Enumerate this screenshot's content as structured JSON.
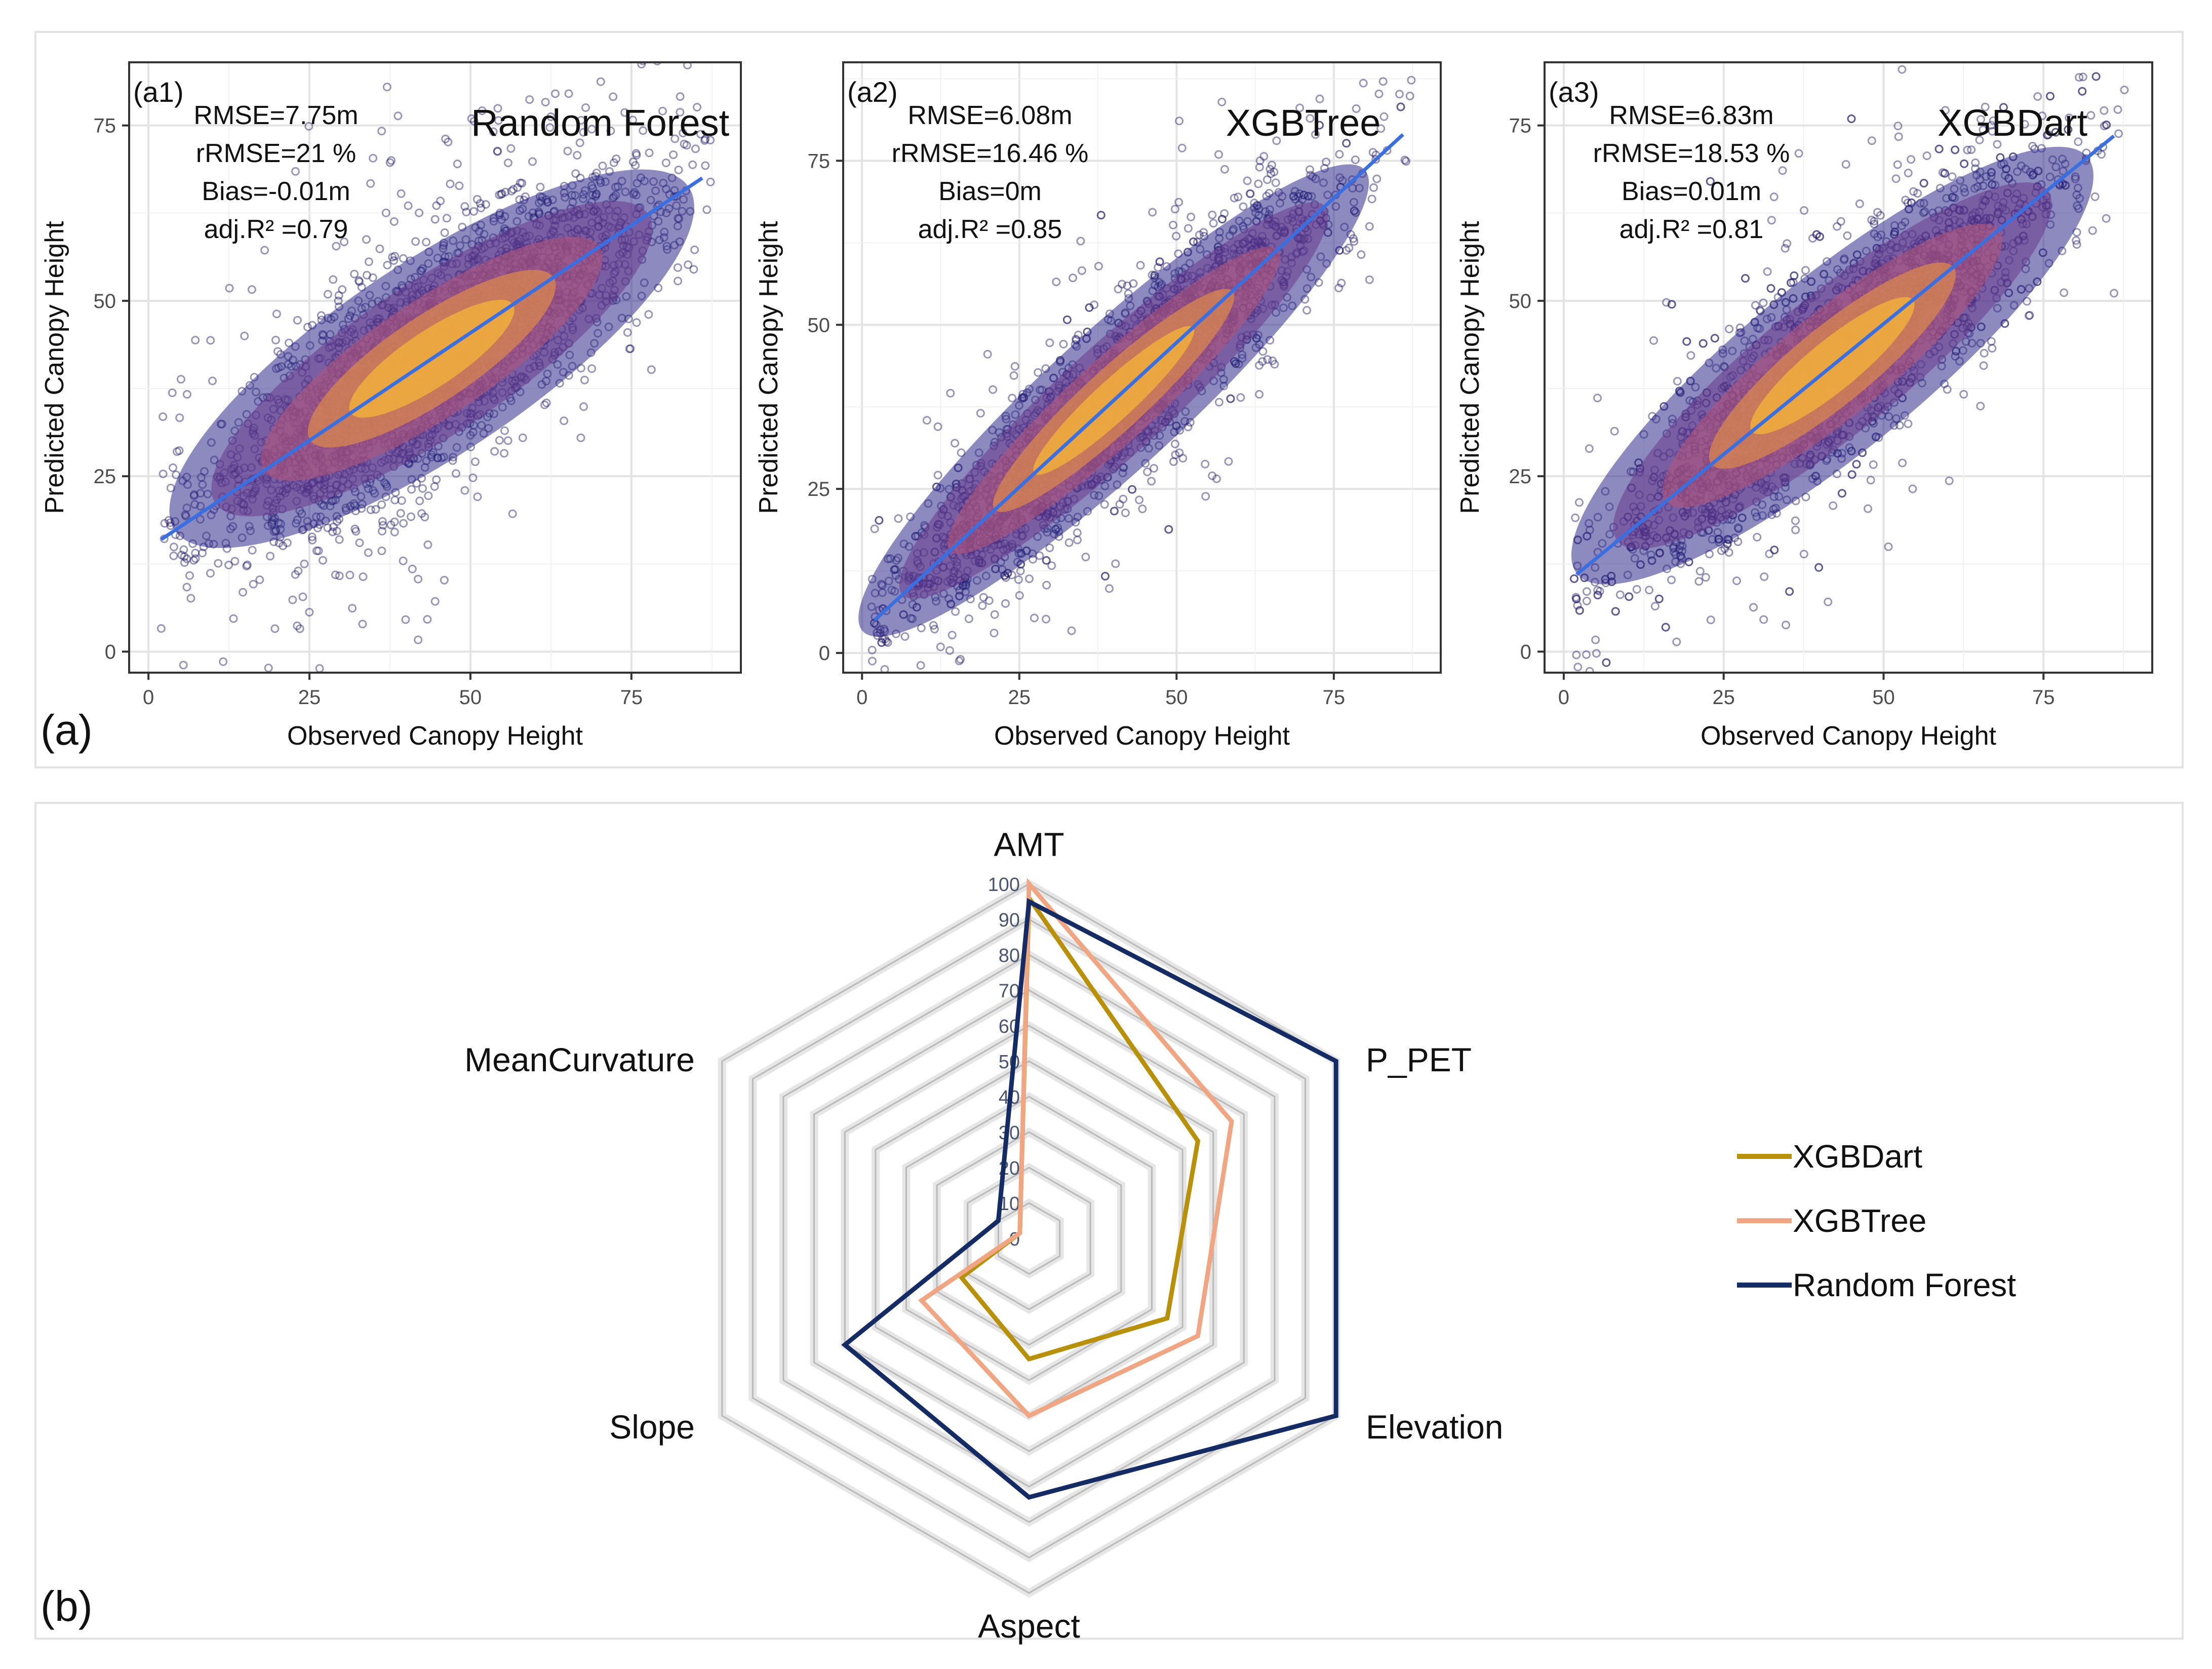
{
  "panel_a": {
    "label": "(a)",
    "x_axis_label": "Observed Canopy Height",
    "y_axis_label": "Predicted Canopy Height"
  },
  "panel_b": {
    "label": "(b)"
  },
  "chart_data": [
    {
      "type": "scatter",
      "id": "a1",
      "panel_tag": "(a1)",
      "title": "Random Forest",
      "stats": [
        "RMSE=7.75m",
        "rRMSE=21 %",
        "Bias=-0.01m",
        "adj.R² =0.79"
      ],
      "xlabel": "Observed Canopy Height",
      "ylabel": "Predicted Canopy Height",
      "xlim": [
        -3,
        92
      ],
      "ylim": [
        -3,
        84
      ],
      "xticks": [
        0,
        25,
        50,
        75
      ],
      "yticks": [
        0,
        25,
        50,
        75
      ],
      "fit_line": {
        "x": [
          2,
          86
        ],
        "y": [
          16,
          67.5
        ]
      },
      "density_center": [
        44,
        44
      ],
      "spread": 7.2,
      "point_color": "#1b1464",
      "line_color": "#3b6fe0"
    },
    {
      "type": "scatter",
      "id": "a2",
      "panel_tag": "(a2)",
      "title": "XGBTree",
      "stats": [
        "RMSE=6.08m",
        "rRMSE=16.46 %",
        "Bias=0m",
        "adj.R² =0.85"
      ],
      "xlabel": "Observed Canopy Height",
      "ylabel": "Predicted Canopy Height",
      "xlim": [
        -3,
        92
      ],
      "ylim": [
        -3,
        90
      ],
      "xticks": [
        0,
        25,
        50,
        75
      ],
      "yticks": [
        0,
        25,
        50,
        75
      ],
      "fit_line": {
        "x": [
          2,
          86
        ],
        "y": [
          5,
          79
        ]
      },
      "density_center": [
        40,
        40
      ],
      "spread": 5.5,
      "point_color": "#1b1464",
      "line_color": "#3b6fe0"
    },
    {
      "type": "scatter",
      "id": "a3",
      "panel_tag": "(a3)",
      "title": "XGBDart",
      "stats": [
        "RMSE=6.83m",
        "rRMSE=18.53 %",
        "Bias=0.01m",
        "adj.R² =0.81"
      ],
      "xlabel": "Observed Canopy Height",
      "ylabel": "Predicted Canopy Height",
      "xlim": [
        -3,
        92
      ],
      "ylim": [
        -3,
        84
      ],
      "xticks": [
        0,
        25,
        50,
        75
      ],
      "yticks": [
        0,
        25,
        50,
        75
      ],
      "fit_line": {
        "x": [
          2,
          86
        ],
        "y": [
          11,
          73.5
        ]
      },
      "density_center": [
        42,
        42
      ],
      "spread": 6.5,
      "point_color": "#1b1464",
      "line_color": "#3b6fe0"
    },
    {
      "type": "radar",
      "id": "b",
      "axes": [
        "AMT",
        "P_PET",
        "Elevation",
        "Aspect",
        "Slope",
        "MeanCurvature"
      ],
      "rings": [
        0,
        10,
        20,
        30,
        40,
        50,
        60,
        70,
        80,
        90,
        100
      ],
      "ring_labels": [
        "0",
        "10",
        "20",
        "30",
        "40",
        "50",
        "60",
        "70",
        "80",
        "90",
        "100"
      ],
      "max": 100,
      "legend_position": "right",
      "series": [
        {
          "name": "XGBDart",
          "color": "#b8900a",
          "values": [
            96,
            55,
            45,
            34,
            22,
            3
          ]
        },
        {
          "name": "XGBTree",
          "color": "#f0a683",
          "values": [
            100,
            66,
            55,
            50,
            35,
            3
          ]
        },
        {
          "name": "Random Forest",
          "color": "#142b63",
          "values": [
            95,
            100,
            100,
            73,
            60,
            10
          ]
        }
      ]
    }
  ]
}
